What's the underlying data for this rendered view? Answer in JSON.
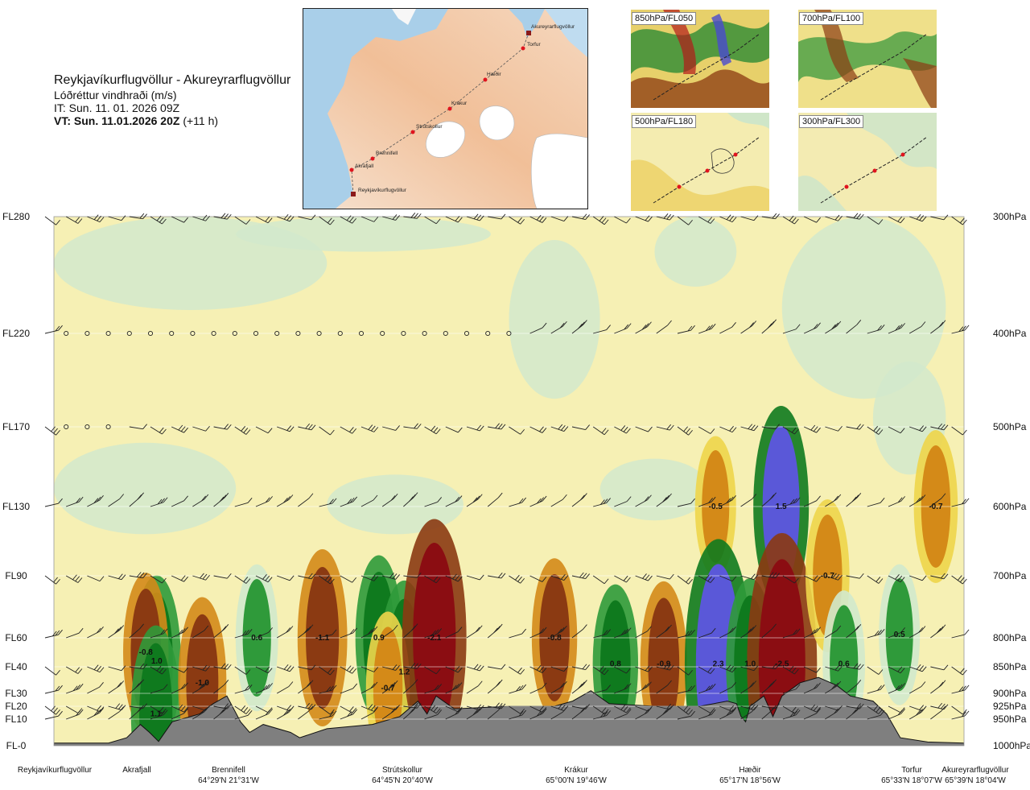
{
  "header": {
    "title": "Reykjavíkurflugvöllur - Akureyrarflugvöllur",
    "parameter": "Lóðréttur vindhraði (m/s)",
    "it": "IT: Sun. 11. 01. 2026 09Z",
    "vt_label": "VT: Sun. 11.01.2026 20Z",
    "vt_offset": "(+11 h)"
  },
  "map": {
    "waypoints": [
      "Akureyrarflugvöllur",
      "Torfur",
      "Hæðir",
      "Krákur",
      "Strútskollur",
      "Brennifell",
      "Akrafjall",
      "Reykjavíkurflugvöllur"
    ]
  },
  "thumbnails": [
    {
      "label": "850hPa/FL050"
    },
    {
      "label": "700hPa/FL100"
    },
    {
      "label": "500hPa/FL180"
    },
    {
      "label": "300hPa/FL300"
    }
  ],
  "colors": {
    "up_strong": "#8b0d12",
    "up_mid": "#8b3a12",
    "up_low": "#d48a18",
    "up_weak": "#eed54a",
    "neutral": "#f6f0b4",
    "down_weak": "#d2e9cc",
    "down_low": "#2f9a3a",
    "down_mid": "#0f7a1e",
    "down_strong": "#5a58d8",
    "terrain": "#7f7f7f"
  },
  "chart_data": {
    "type": "heatmap",
    "title": "Lóðréttur vindhraði (m/s)",
    "flight_levels": [
      {
        "fl": "FL280",
        "p": "300hPa"
      },
      {
        "fl": "FL220",
        "p": "400hPa"
      },
      {
        "fl": "FL170",
        "p": "500hPa"
      },
      {
        "fl": "FL130",
        "p": "600hPa"
      },
      {
        "fl": "FL90",
        "p": "700hPa"
      },
      {
        "fl": "FL60",
        "p": "800hPa"
      },
      {
        "fl": "FL40",
        "p": "850hPa"
      },
      {
        "fl": "FL30",
        "p": "900hPa"
      },
      {
        "fl": "FL20",
        "p": "925hPa"
      },
      {
        "fl": "FL10",
        "p": "950hPa"
      },
      {
        "fl": "FL-0",
        "p": "1000hPa"
      }
    ],
    "fl_values": [
      28000,
      22000,
      17000,
      13000,
      9000,
      6000,
      4000,
      3000,
      2000,
      1000,
      0
    ],
    "locations": [
      {
        "name": "Reykjavíkurflugvöllur",
        "coord": "",
        "frac": 0.0
      },
      {
        "name": "Akrafjall",
        "coord": "",
        "frac": 0.092
      },
      {
        "name": "Brennifell",
        "coord": "64°29'N 21°31'W",
        "frac": 0.186
      },
      {
        "name": "Strútskollur",
        "coord": "64°45'N 20°40'W",
        "frac": 0.386
      },
      {
        "name": "Krákur",
        "coord": "65°00'N 19°46'W",
        "frac": 0.578
      },
      {
        "name": "Hæðir",
        "coord": "65°17'N 18°56'W",
        "frac": 0.738
      },
      {
        "name": "Torfur",
        "coord": "65°33'N 18°07'W",
        "frac": 0.944
      },
      {
        "name": "Akureyrarflugvöllur",
        "coord": "65°39'N 18°04'W",
        "frac": 1.0
      }
    ],
    "cells": [
      {
        "x": 0.113,
        "p": 840,
        "v": 1.0,
        "label": "1.0"
      },
      {
        "x": 0.101,
        "p": 825,
        "v": -0.8,
        "label": "-0.8"
      },
      {
        "x": 0.112,
        "p": 940,
        "v": 1.1,
        "label": "1.1"
      },
      {
        "x": 0.163,
        "p": 880,
        "v": -1.0,
        "label": "-1.0"
      },
      {
        "x": 0.223,
        "p": 800,
        "v": 0.6,
        "label": "0.6"
      },
      {
        "x": 0.295,
        "p": 800,
        "v": -1.1,
        "label": "-1.1"
      },
      {
        "x": 0.357,
        "p": 800,
        "v": 0.9,
        "label": "0.9"
      },
      {
        "x": 0.385,
        "p": 860,
        "v": 1.2,
        "label": "1.2"
      },
      {
        "x": 0.367,
        "p": 890,
        "v": -0.7,
        "label": "-0.7"
      },
      {
        "x": 0.418,
        "p": 800,
        "v": -2.1,
        "label": "-2.1"
      },
      {
        "x": 0.55,
        "p": 800,
        "v": -0.8,
        "label": "-0.8"
      },
      {
        "x": 0.617,
        "p": 845,
        "v": 0.8,
        "label": "0.8"
      },
      {
        "x": 0.67,
        "p": 845,
        "v": -0.9,
        "label": "-0.9"
      },
      {
        "x": 0.727,
        "p": 600,
        "v": -0.5,
        "label": "-0.5"
      },
      {
        "x": 0.73,
        "p": 845,
        "v": 2.3,
        "label": "2.3"
      },
      {
        "x": 0.765,
        "p": 845,
        "v": 1.0,
        "label": "1.0"
      },
      {
        "x": 0.799,
        "p": 600,
        "v": 1.5,
        "label": "1.5"
      },
      {
        "x": 0.8,
        "p": 845,
        "v": -2.5,
        "label": "-2.5"
      },
      {
        "x": 0.85,
        "p": 700,
        "v": -0.7,
        "label": "-0.7"
      },
      {
        "x": 0.868,
        "p": 845,
        "v": 0.6,
        "label": "0.6"
      },
      {
        "x": 0.929,
        "p": 795,
        "v": 0.5,
        "label": "0.5"
      },
      {
        "x": 0.969,
        "p": 600,
        "v": -0.7,
        "label": "-0.7"
      }
    ]
  }
}
